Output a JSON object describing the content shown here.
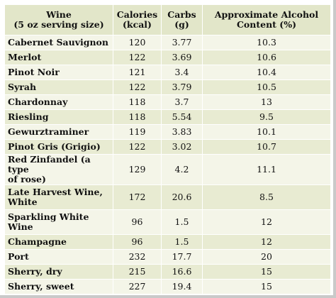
{
  "table": {
    "headers": [
      {
        "line1": "Wine",
        "line2": "(5 oz serving size)"
      },
      {
        "line1": "Calories",
        "line2": "(kcal)"
      },
      {
        "line1": "Carbs",
        "line2": "(g)"
      },
      {
        "line1": "Approximate Alcohol",
        "line2": "Content (%)"
      }
    ],
    "rows": [
      {
        "wine": [
          "Cabernet Sauvignon"
        ],
        "calories": "120",
        "carbs": "3.77",
        "alcohol": "10.3"
      },
      {
        "wine": [
          "Merlot"
        ],
        "calories": "122",
        "carbs": "3.69",
        "alcohol": "10.6"
      },
      {
        "wine": [
          "Pinot Noir"
        ],
        "calories": "121",
        "carbs": "3.4",
        "alcohol": "10.4"
      },
      {
        "wine": [
          "Syrah"
        ],
        "calories": "122",
        "carbs": "3.79",
        "alcohol": "10.5"
      },
      {
        "wine": [
          "Chardonnay"
        ],
        "calories": "118",
        "carbs": "3.7",
        "alcohol": "13"
      },
      {
        "wine": [
          "Riesling"
        ],
        "calories": "118",
        "carbs": "5.54",
        "alcohol": "9.5"
      },
      {
        "wine": [
          "Gewurztraminer"
        ],
        "calories": "119",
        "carbs": "3.83",
        "alcohol": "10.1"
      },
      {
        "wine": [
          "Pinot Gris (Grigio)"
        ],
        "calories": "122",
        "carbs": "3.02",
        "alcohol": "10.7"
      },
      {
        "wine": [
          "Red Zinfandel (a type",
          "of rose)"
        ],
        "calories": "129",
        "carbs": "4.2",
        "alcohol": "11.1"
      },
      {
        "wine": [
          "Late Harvest Wine,",
          "White"
        ],
        "calories": "172",
        "carbs": "20.6",
        "alcohol": "8.5"
      },
      {
        "wine": [
          "Sparkling White",
          "Wine"
        ],
        "calories": "96",
        "carbs": "1.5",
        "alcohol": "12"
      },
      {
        "wine": [
          "Champagne"
        ],
        "calories": "96",
        "carbs": "1.5",
        "alcohol": "12"
      },
      {
        "wine": [
          "Port"
        ],
        "calories": "232",
        "carbs": "17.7",
        "alcohol": "20"
      },
      {
        "wine": [
          "Sherry, dry"
        ],
        "calories": "215",
        "carbs": "16.6",
        "alcohol": "15"
      },
      {
        "wine": [
          "Sherry, sweet"
        ],
        "calories": "227",
        "carbs": "19.4",
        "alcohol": "15"
      }
    ]
  }
}
